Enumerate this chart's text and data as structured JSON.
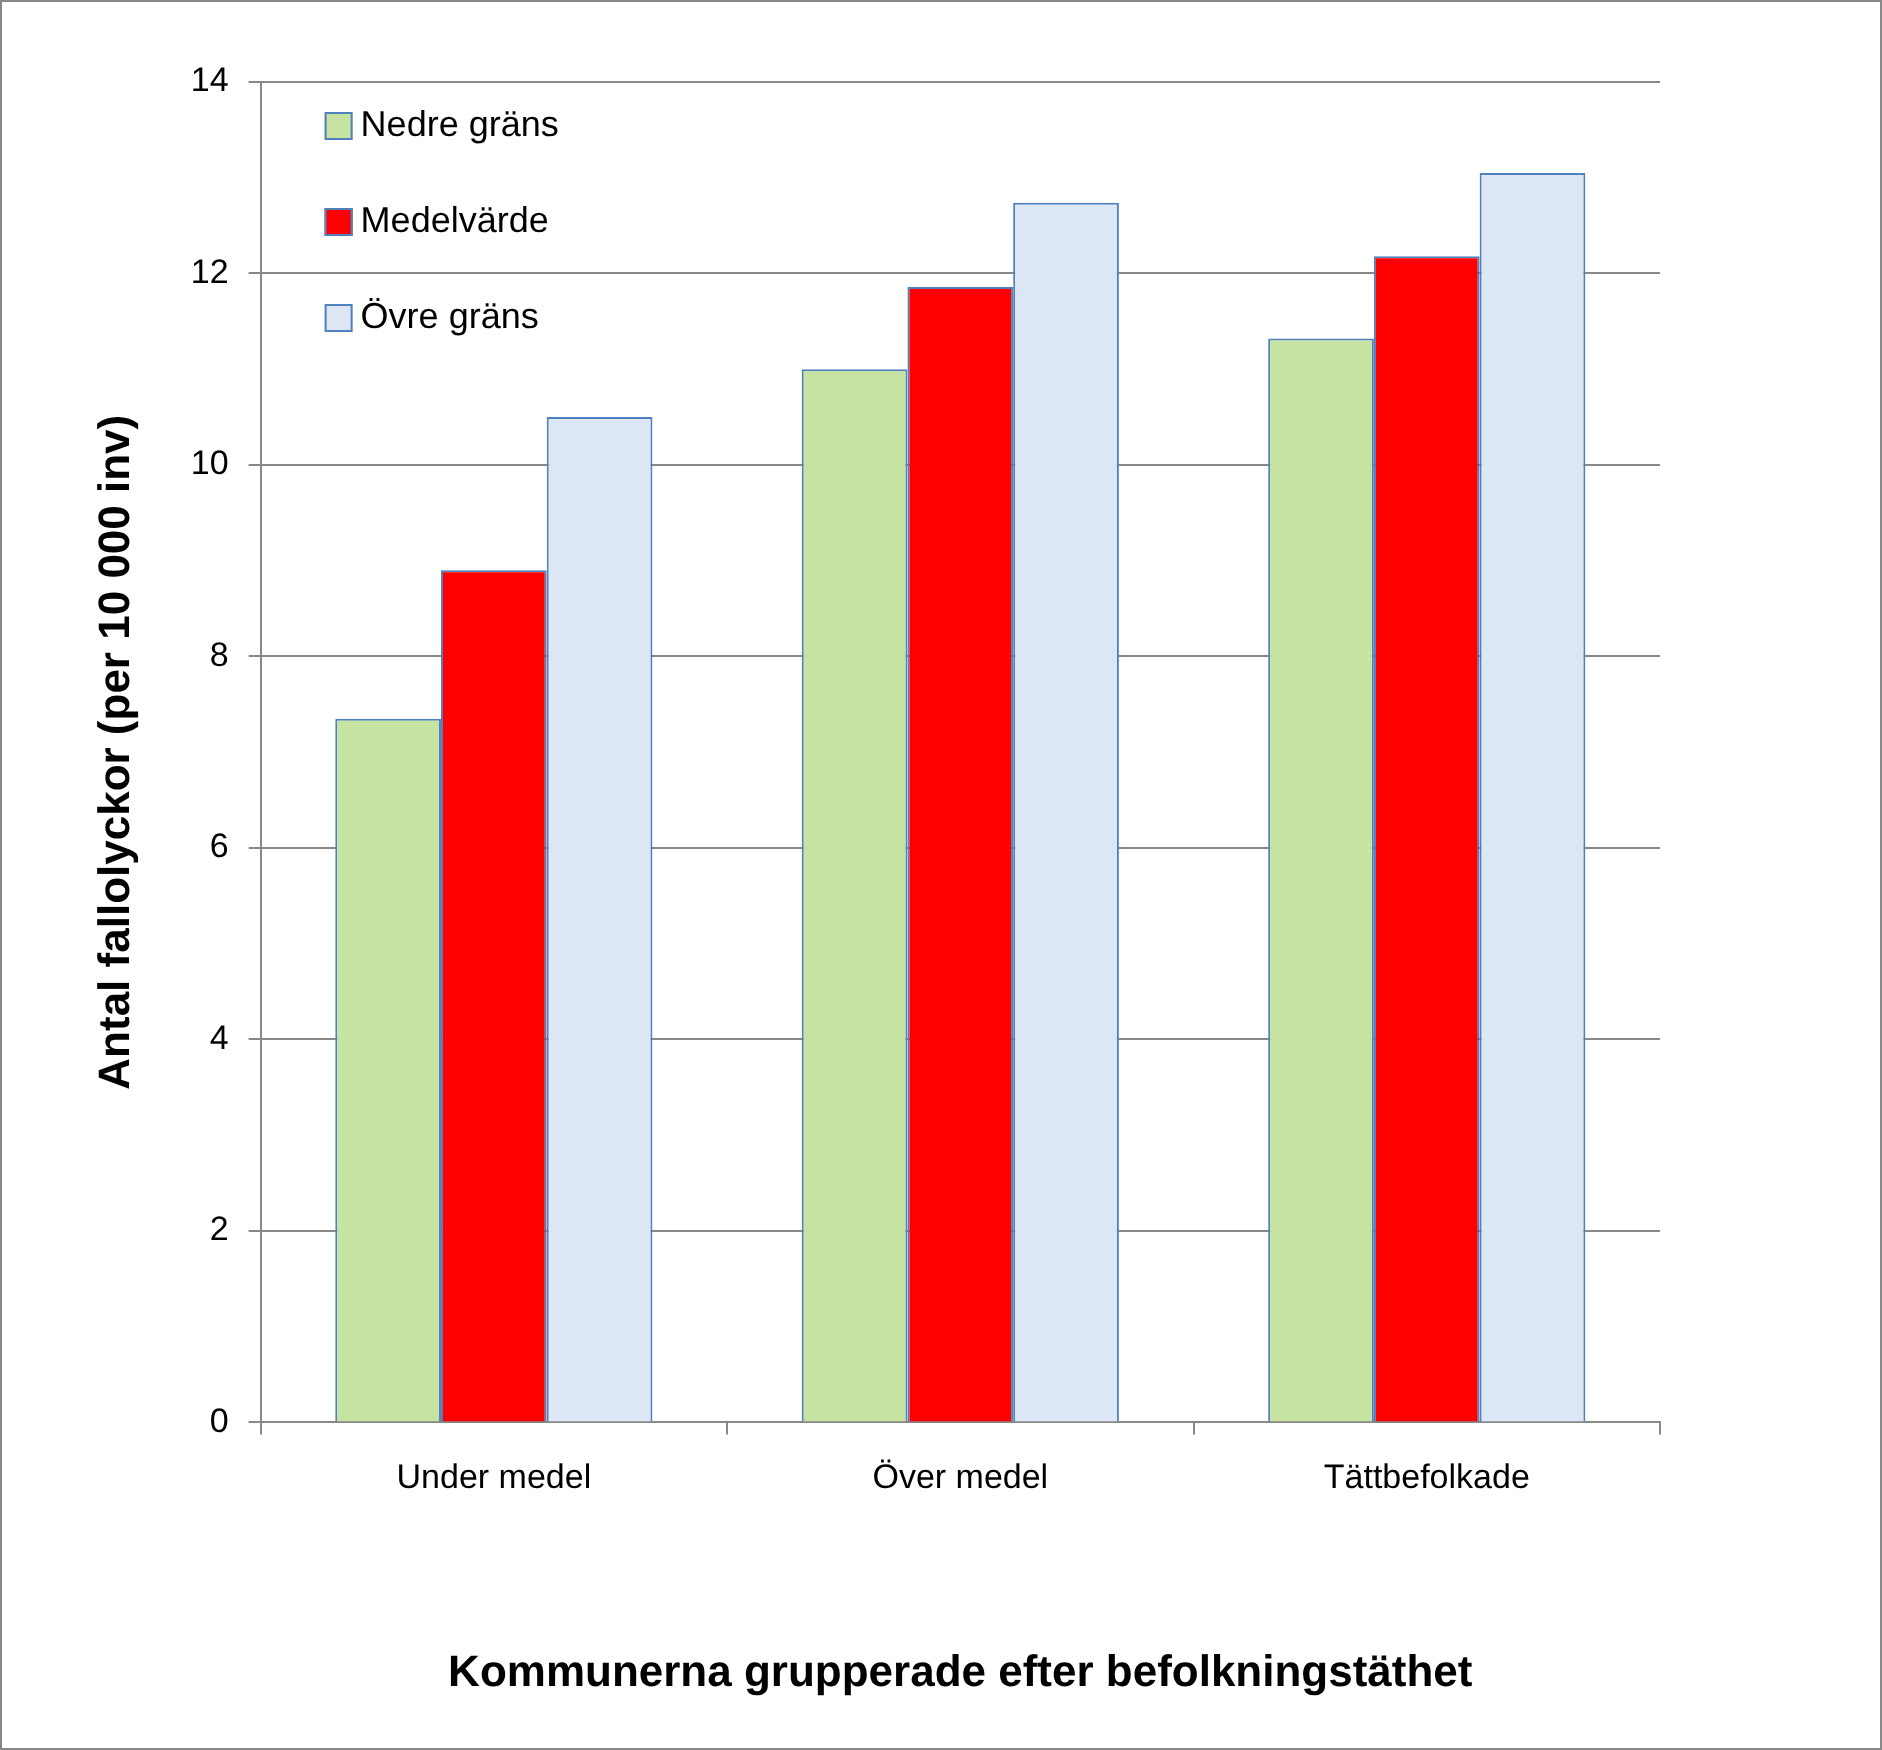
{
  "chart_data": {
    "type": "bar",
    "xlabel": "Kommunerna grupperade efter befolkningstäthet",
    "ylabel": "Antal fallolyckor (per 10 000 inv)",
    "categories": [
      "Under medel",
      "Över medel",
      "Tättbefolkade"
    ],
    "series": [
      {
        "name": "Nedre gräns",
        "color": "#c6e3a2",
        "values": [
          7.35,
          11.0,
          11.32
        ]
      },
      {
        "name": "Medelvärde",
        "color": "#ff0000",
        "values": [
          8.9,
          11.86,
          12.18
        ]
      },
      {
        "name": "Övre gräns",
        "color": "#dce6f5",
        "values": [
          10.5,
          12.74,
          13.05
        ]
      }
    ],
    "ylim": [
      0,
      14
    ],
    "yticks": [
      0,
      2,
      4,
      6,
      8,
      10,
      12,
      14
    ],
    "grid": "y",
    "legend": "top left"
  }
}
